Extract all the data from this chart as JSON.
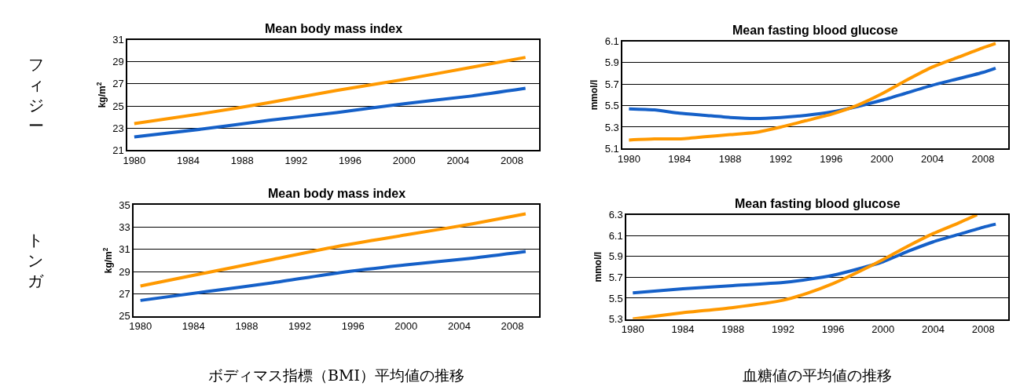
{
  "chart_data": [
    {
      "type": "line",
      "title": "Mean body mass index",
      "ylabel": "kg/m$^{2}$",
      "xlim": [
        1979.5,
        2010
      ],
      "xticks": [
        1980,
        1984,
        1988,
        1992,
        1996,
        2000,
        2004,
        2008
      ],
      "ylim": [
        21,
        31
      ],
      "yticks": [
        21,
        23,
        25,
        27,
        29,
        31
      ],
      "grid": "y",
      "annotations": [
        "フィジー"
      ],
      "series": [
        {
          "color": "#1560c8",
          "x": [
            1980,
            1985,
            1990,
            1995,
            2000,
            2005,
            2009
          ],
          "values": [
            22.2,
            22.9,
            23.7,
            24.4,
            25.2,
            25.9,
            26.6
          ]
        },
        {
          "color": "#ff9900",
          "x": [
            1980,
            1985,
            1990,
            1995,
            2000,
            2005,
            2009
          ],
          "values": [
            23.4,
            24.3,
            25.3,
            26.4,
            27.4,
            28.5,
            29.4
          ]
        }
      ]
    },
    {
      "type": "line",
      "title": "Mean fasting blood glucose",
      "ylabel": "mmol/l",
      "xlim": [
        1979.5,
        2010
      ],
      "xticks": [
        1980,
        1984,
        1988,
        1992,
        1996,
        2000,
        2004,
        2008
      ],
      "ylim": [
        5.1,
        6.1
      ],
      "yticks": [
        {
          "value": 5.1,
          "label": "5.1"
        },
        {
          "value": 5.3,
          "label": "5.3"
        },
        {
          "value": 5.5,
          "label": "5.5"
        },
        {
          "value": 5.7,
          "label": "5.7"
        },
        {
          "value": 5.9,
          "label": "5.9"
        },
        {
          "value": 6.1,
          "label": "6.1"
        }
      ],
      "grid": "y",
      "series": [
        {
          "color": "#1560c8",
          "x": [
            1980,
            1982,
            1984,
            1986,
            1988,
            1990,
            1992,
            1994,
            1996,
            1998,
            2000,
            2002,
            2004,
            2006,
            2008,
            2009
          ],
          "values": [
            5.47,
            5.46,
            5.43,
            5.41,
            5.39,
            5.38,
            5.39,
            5.41,
            5.44,
            5.49,
            5.55,
            5.62,
            5.69,
            5.75,
            5.81,
            5.85
          ]
        },
        {
          "color": "#ff9900",
          "x": [
            1980,
            1982,
            1984,
            1986,
            1988,
            1990,
            1992,
            1994,
            1996,
            1998,
            2000,
            2002,
            2004,
            2006,
            2008,
            2009
          ],
          "values": [
            5.18,
            5.19,
            5.19,
            5.21,
            5.23,
            5.25,
            5.3,
            5.36,
            5.42,
            5.5,
            5.61,
            5.74,
            5.86,
            5.95,
            6.04,
            6.08
          ]
        }
      ]
    },
    {
      "type": "line",
      "title": "Mean body mass index",
      "ylabel": "kg/m$^{2}$",
      "xlim": [
        1979.5,
        2010
      ],
      "xticks": [
        1980,
        1984,
        1988,
        1992,
        1996,
        2000,
        2004,
        2008
      ],
      "ylim": [
        25,
        35
      ],
      "yticks": [
        25,
        27,
        29,
        31,
        33,
        35
      ],
      "grid": "y",
      "annotations": [
        "トンガ",
        "ボディマス指標（BMI）平均値の推移"
      ],
      "series": [
        {
          "color": "#1560c8",
          "x": [
            1980,
            1985,
            1990,
            1995,
            2000,
            2005,
            2009
          ],
          "values": [
            26.4,
            27.2,
            28.0,
            28.9,
            29.6,
            30.2,
            30.8
          ]
        },
        {
          "color": "#ff9900",
          "x": [
            1980,
            1985,
            1990,
            1995,
            2000,
            2005,
            2009
          ],
          "values": [
            27.7,
            28.9,
            30.1,
            31.3,
            32.3,
            33.3,
            34.2
          ]
        }
      ]
    },
    {
      "type": "line",
      "title": "Mean fasting blood glucose",
      "ylabel": "mmol/l",
      "xlim": [
        1979.5,
        2010
      ],
      "xticks": [
        1980,
        1984,
        1988,
        1992,
        1996,
        2000,
        2004,
        2008
      ],
      "ylim": [
        5.3,
        6.3
      ],
      "yticks": [
        {
          "value": 5.3,
          "label": "5.3"
        },
        {
          "value": 5.5,
          "label": "5.5"
        },
        {
          "value": 5.7,
          "label": "5.7"
        },
        {
          "value": 5.9,
          "label": "5.9"
        },
        {
          "value": 6.1,
          "label": "6.1"
        },
        {
          "value": 6.3,
          "label": "6.3"
        }
      ],
      "grid": "y",
      "annotations": [
        "血糖値の平均値の推移"
      ],
      "series": [
        {
          "color": "#1560c8",
          "x": [
            1980,
            1984,
            1988,
            1992,
            1994,
            1996,
            1998,
            2000,
            2002,
            2004,
            2006,
            2008,
            2009
          ],
          "values": [
            5.55,
            5.59,
            5.62,
            5.65,
            5.68,
            5.72,
            5.78,
            5.85,
            5.95,
            6.04,
            6.11,
            6.18,
            6.21
          ]
        },
        {
          "color": "#ff9900",
          "x": [
            1980,
            1984,
            1988,
            1992,
            1994,
            1996,
            1998,
            2000,
            2002,
            2004,
            2006,
            2007.5
          ],
          "values": [
            5.3,
            5.36,
            5.41,
            5.48,
            5.55,
            5.64,
            5.75,
            5.87,
            6.0,
            6.12,
            6.22,
            6.3
          ]
        }
      ]
    }
  ]
}
